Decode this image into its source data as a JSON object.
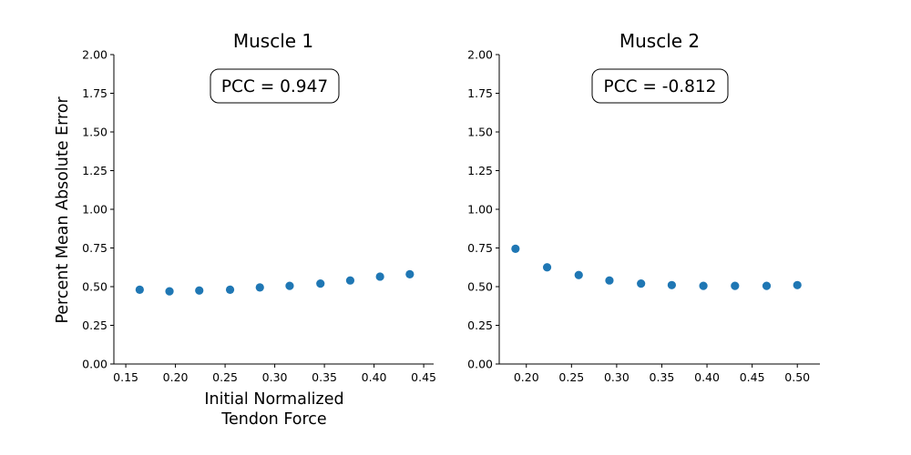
{
  "figure": {
    "ylabel": "Percent Mean Absolute Error",
    "xlabel_lines": [
      "Initial Normalized",
      "Tendon Force"
    ]
  },
  "colors": {
    "marker": "#1f77b4",
    "axis": "#000000",
    "background": "#ffffff"
  },
  "chart_data": [
    {
      "type": "scatter",
      "title": "Muscle 1",
      "annotation": "PCC = 0.947",
      "xlabel": "Initial Normalized Tendon Force",
      "ylabel": "Percent Mean Absolute Error",
      "xlim": [
        0.138,
        0.46
      ],
      "ylim": [
        0,
        2.0
      ],
      "xticks": [
        "0.15",
        "0.20",
        "0.25",
        "0.30",
        "0.35",
        "0.40",
        "0.45"
      ],
      "yticks": [
        "0.00",
        "0.25",
        "0.50",
        "0.75",
        "1.00",
        "1.25",
        "1.50",
        "1.75",
        "2.00"
      ],
      "grid": false,
      "x": [
        0.164,
        0.194,
        0.224,
        0.255,
        0.285,
        0.315,
        0.346,
        0.376,
        0.406,
        0.436
      ],
      "y": [
        0.48,
        0.47,
        0.475,
        0.48,
        0.495,
        0.505,
        0.52,
        0.54,
        0.565,
        0.58
      ]
    },
    {
      "type": "scatter",
      "title": "Muscle 2",
      "annotation": "PCC = -0.812",
      "xlabel": "",
      "ylabel": "",
      "xlim": [
        0.17,
        0.525
      ],
      "ylim": [
        0,
        2.0
      ],
      "xticks": [
        "0.20",
        "0.25",
        "0.30",
        "0.35",
        "0.40",
        "0.45",
        "0.50"
      ],
      "yticks": [
        "0.00",
        "0.25",
        "0.50",
        "0.75",
        "1.00",
        "1.25",
        "1.50",
        "1.75",
        "2.00"
      ],
      "grid": false,
      "x": [
        0.188,
        0.223,
        0.258,
        0.292,
        0.327,
        0.361,
        0.396,
        0.431,
        0.466,
        0.5
      ],
      "y": [
        0.745,
        0.625,
        0.575,
        0.54,
        0.52,
        0.51,
        0.505,
        0.505,
        0.505,
        0.51
      ]
    }
  ]
}
